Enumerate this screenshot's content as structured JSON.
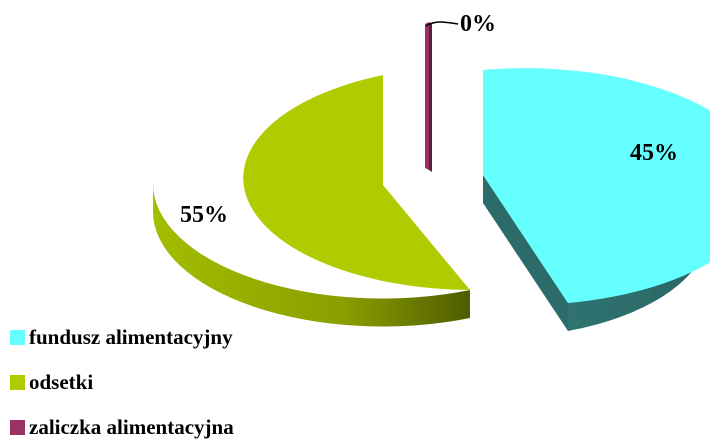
{
  "chart_data": {
    "type": "pie",
    "title": "",
    "slices": [
      {
        "label": "fundusz alimentacyjny",
        "value": 45,
        "value_label": "45%",
        "color": "#66FFFF",
        "side_color": "#2E6F6C"
      },
      {
        "label": "odsetki",
        "value": 55,
        "value_label": "55%",
        "color": "#B0CC00",
        "side_color": "#6E8200"
      },
      {
        "label": "zaliczka alimentacyjna",
        "value": 0,
        "value_label": "0%",
        "color": "#993366",
        "side_color": "#5E1F3E"
      }
    ],
    "legend_position": "bottom-left",
    "style": "3d-exploded"
  }
}
